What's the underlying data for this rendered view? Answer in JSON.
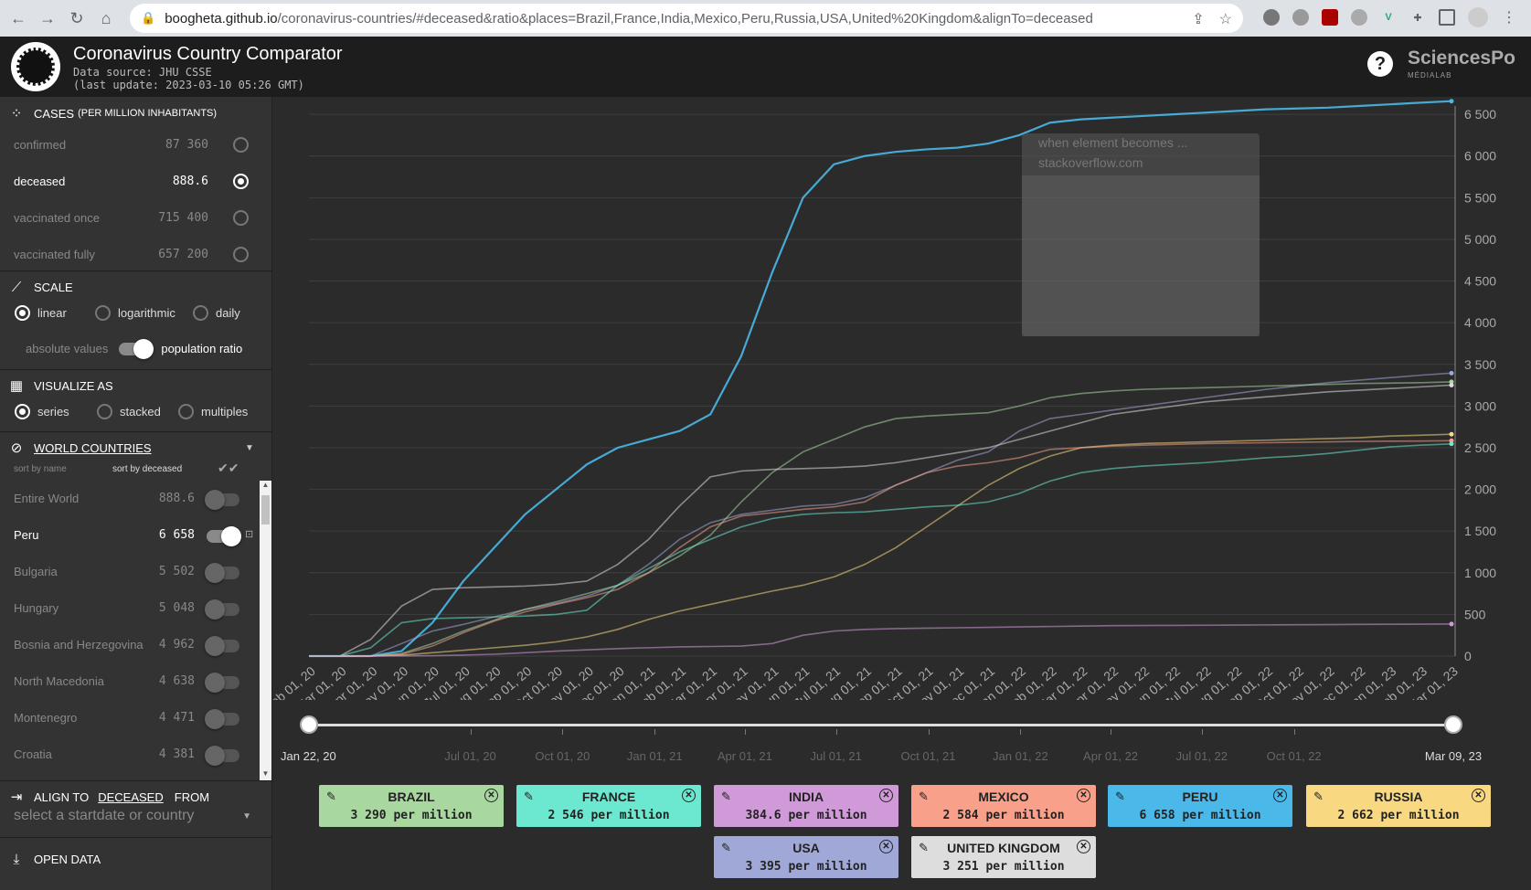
{
  "browser": {
    "url_host": "boogheta.github.io",
    "url_path": "/coronavirus-countries/#deceased&ratio&places=Brazil,France,India,Mexico,Peru,Russia,USA,United%20Kingdom&alignTo=deceased"
  },
  "app": {
    "title": "Coronavirus Country Comparator",
    "source": "Data source: JHU CSSE",
    "update": "(last update: 2023-03-10 05:26 GMT)",
    "help": "?",
    "brand": "SciencesPo",
    "brand_sub": "MÉDIALAB"
  },
  "cases": {
    "title": "CASES",
    "subtitle": "(PER MILLION INHABITANTS)",
    "items": [
      {
        "label": "confirmed",
        "value": "87 360",
        "selected": false
      },
      {
        "label": "deceased",
        "value": "888.6",
        "selected": true
      },
      {
        "label": "vaccinated once",
        "value": "715 400",
        "selected": false
      },
      {
        "label": "vaccinated fully",
        "value": "657 200",
        "selected": false
      }
    ]
  },
  "scale": {
    "title": "SCALE",
    "options": [
      "linear",
      "logarithmic",
      "daily"
    ],
    "selected": "linear",
    "absolute_label": "absolute values",
    "ratio_label": "population ratio"
  },
  "visualize": {
    "title": "VISUALIZE AS",
    "options": [
      "series",
      "stacked",
      "multiples"
    ],
    "selected": "series"
  },
  "countries": {
    "title": "WORLD COUNTRIES",
    "sort_name": "sort by name",
    "sort_value": "sort by deceased",
    "items": [
      {
        "label": "Entire World",
        "value": "888.6",
        "on": false
      },
      {
        "label": "Peru",
        "value": "6 658",
        "on": true
      },
      {
        "label": "Bulgaria",
        "value": "5 502",
        "on": false
      },
      {
        "label": "Hungary",
        "value": "5 048",
        "on": false
      },
      {
        "label": "Bosnia and Herzegovina",
        "value": "4 962",
        "on": false
      },
      {
        "label": "North Macedonia",
        "value": "4 638",
        "on": false
      },
      {
        "label": "Montenegro",
        "value": "4 471",
        "on": false
      },
      {
        "label": "Croatia",
        "value": "4 381",
        "on": false
      }
    ]
  },
  "align": {
    "title": "ALIGN TO",
    "metric": "DECEASED",
    "from": "FROM",
    "placeholder": "select a startdate or country"
  },
  "open_data": {
    "title": "OPEN DATA"
  },
  "tooltip": {
    "line1": "when element becomes ...",
    "line2": "stackoverflow.com"
  },
  "timeline": {
    "start": "Jan 22, 20",
    "end": "Mar 09, 23",
    "labels": [
      "Jul 01, 20",
      "Oct 01, 20",
      "Jan 01, 21",
      "Apr 01, 21",
      "Jul 01, 21",
      "Oct 01, 21",
      "Jan 01, 22",
      "Apr 01, 22",
      "Jul 01, 22",
      "Oct 01, 22"
    ]
  },
  "cards": [
    {
      "name": "BRAZIL",
      "value": "3 290",
      "unit": "per million",
      "color": "#a8d8a0"
    },
    {
      "name": "FRANCE",
      "value": "2 546",
      "unit": "per million",
      "color": "#6de8d0"
    },
    {
      "name": "INDIA",
      "value": "384.6",
      "unit": "per million",
      "color": "#d09ad8"
    },
    {
      "name": "MEXICO",
      "value": "2 584",
      "unit": "per million",
      "color": "#f8a08a"
    },
    {
      "name": "PERU",
      "value": "6 658",
      "unit": "per million",
      "color": "#4ab8e8"
    },
    {
      "name": "RUSSIA",
      "value": "2 662",
      "unit": "per million",
      "color": "#f8d880"
    },
    {
      "name": "USA",
      "value": "3 395",
      "unit": "per million",
      "color": "#a0a8d8"
    },
    {
      "name": "UNITED KINGDOM",
      "value": "3 251",
      "unit": "per million",
      "color": "#dddddd"
    }
  ],
  "chart_data": {
    "type": "line",
    "xlabel": "",
    "ylabel": "",
    "ylim": [
      0,
      6600
    ],
    "yticks": [
      0,
      500,
      1000,
      1500,
      2000,
      2500,
      3000,
      3500,
      4000,
      4500,
      5000,
      5500,
      6000,
      6500
    ],
    "x": [
      "Feb 01, 20",
      "Mar 01, 20",
      "Apr 01, 20",
      "May 01, 20",
      "Jun 01, 20",
      "Jul 01, 20",
      "Aug 01, 20",
      "Sep 01, 20",
      "Oct 01, 20",
      "Nov 01, 20",
      "Dec 01, 20",
      "Jan 01, 21",
      "Feb 01, 21",
      "Mar 01, 21",
      "Apr 01, 21",
      "May 01, 21",
      "Jun 01, 21",
      "Jul 01, 21",
      "Aug 01, 21",
      "Sep 01, 21",
      "Oct 01, 21",
      "Nov 01, 21",
      "Dec 01, 21",
      "Jan 01, 22",
      "Feb 01, 22",
      "Mar 01, 22",
      "Apr 01, 22",
      "May 01, 22",
      "Jun 01, 22",
      "Jul 01, 22",
      "Aug 01, 22",
      "Sep 01, 22",
      "Oct 01, 22",
      "Nov 01, 22",
      "Dec 01, 22",
      "Jan 01, 23",
      "Feb 01, 23",
      "Mar 01, 23"
    ],
    "series": [
      {
        "name": "PERU",
        "color": "#4ab8e8",
        "values": [
          0,
          0,
          0,
          60,
          400,
          900,
          1300,
          1700,
          2000,
          2300,
          2500,
          2600,
          2700,
          2900,
          3600,
          4600,
          5500,
          5900,
          6000,
          6050,
          6080,
          6100,
          6150,
          6250,
          6400,
          6440,
          6460,
          6480,
          6500,
          6520,
          6540,
          6560,
          6570,
          6580,
          6600,
          6620,
          6640,
          6658
        ]
      },
      {
        "name": "USA",
        "color": "#a0a8d8",
        "values": [
          0,
          0,
          0,
          150,
          300,
          380,
          470,
          560,
          630,
          720,
          850,
          1100,
          1400,
          1600,
          1700,
          1750,
          1800,
          1820,
          1900,
          2050,
          2200,
          2350,
          2450,
          2700,
          2850,
          2900,
          2950,
          3000,
          3050,
          3100,
          3150,
          3200,
          3240,
          3280,
          3310,
          3340,
          3370,
          3395
        ]
      },
      {
        "name": "BRAZIL",
        "color": "#a8d8a0",
        "values": [
          0,
          0,
          0,
          30,
          150,
          300,
          430,
          560,
          650,
          750,
          850,
          1000,
          1200,
          1450,
          1850,
          2200,
          2450,
          2600,
          2750,
          2850,
          2880,
          2900,
          2920,
          3000,
          3100,
          3150,
          3180,
          3200,
          3210,
          3220,
          3230,
          3240,
          3250,
          3260,
          3270,
          3275,
          3280,
          3290
        ]
      },
      {
        "name": "UNITED KINGDOM",
        "color": "#dddddd",
        "values": [
          0,
          0,
          200,
          600,
          800,
          820,
          830,
          840,
          860,
          900,
          1100,
          1400,
          1800,
          2150,
          2220,
          2240,
          2250,
          2260,
          2280,
          2320,
          2380,
          2440,
          2500,
          2600,
          2700,
          2800,
          2900,
          2950,
          3000,
          3050,
          3080,
          3110,
          3140,
          3170,
          3190,
          3210,
          3230,
          3251
        ]
      },
      {
        "name": "RUSSIA",
        "color": "#f8d880",
        "values": [
          0,
          0,
          0,
          10,
          40,
          70,
          100,
          130,
          170,
          230,
          320,
          440,
          540,
          620,
          700,
          780,
          850,
          950,
          1100,
          1300,
          1550,
          1800,
          2050,
          2250,
          2400,
          2500,
          2530,
          2550,
          2560,
          2570,
          2580,
          2590,
          2600,
          2610,
          2620,
          2640,
          2650,
          2662
        ]
      },
      {
        "name": "MEXICO",
        "color": "#f8a08a",
        "values": [
          0,
          0,
          0,
          20,
          120,
          280,
          420,
          530,
          620,
          700,
          800,
          1000,
          1300,
          1550,
          1680,
          1720,
          1760,
          1790,
          1850,
          2050,
          2200,
          2280,
          2320,
          2380,
          2480,
          2500,
          2520,
          2530,
          2540,
          2550,
          2555,
          2560,
          2565,
          2570,
          2575,
          2578,
          2580,
          2584
        ]
      },
      {
        "name": "FRANCE",
        "color": "#6de8d0",
        "values": [
          0,
          0,
          100,
          400,
          450,
          460,
          470,
          480,
          500,
          550,
          850,
          1050,
          1250,
          1400,
          1550,
          1650,
          1700,
          1720,
          1730,
          1760,
          1790,
          1810,
          1850,
          1950,
          2100,
          2200,
          2250,
          2280,
          2300,
          2320,
          2350,
          2380,
          2400,
          2430,
          2470,
          2510,
          2530,
          2546
        ]
      },
      {
        "name": "INDIA",
        "color": "#d09ad8",
        "values": [
          0,
          0,
          0,
          2,
          5,
          12,
          22,
          40,
          60,
          75,
          90,
          100,
          110,
          115,
          120,
          150,
          250,
          300,
          320,
          330,
          335,
          340,
          345,
          350,
          355,
          360,
          365,
          367,
          368,
          370,
          372,
          374,
          376,
          378,
          380,
          382,
          383,
          384.6
        ]
      }
    ]
  }
}
